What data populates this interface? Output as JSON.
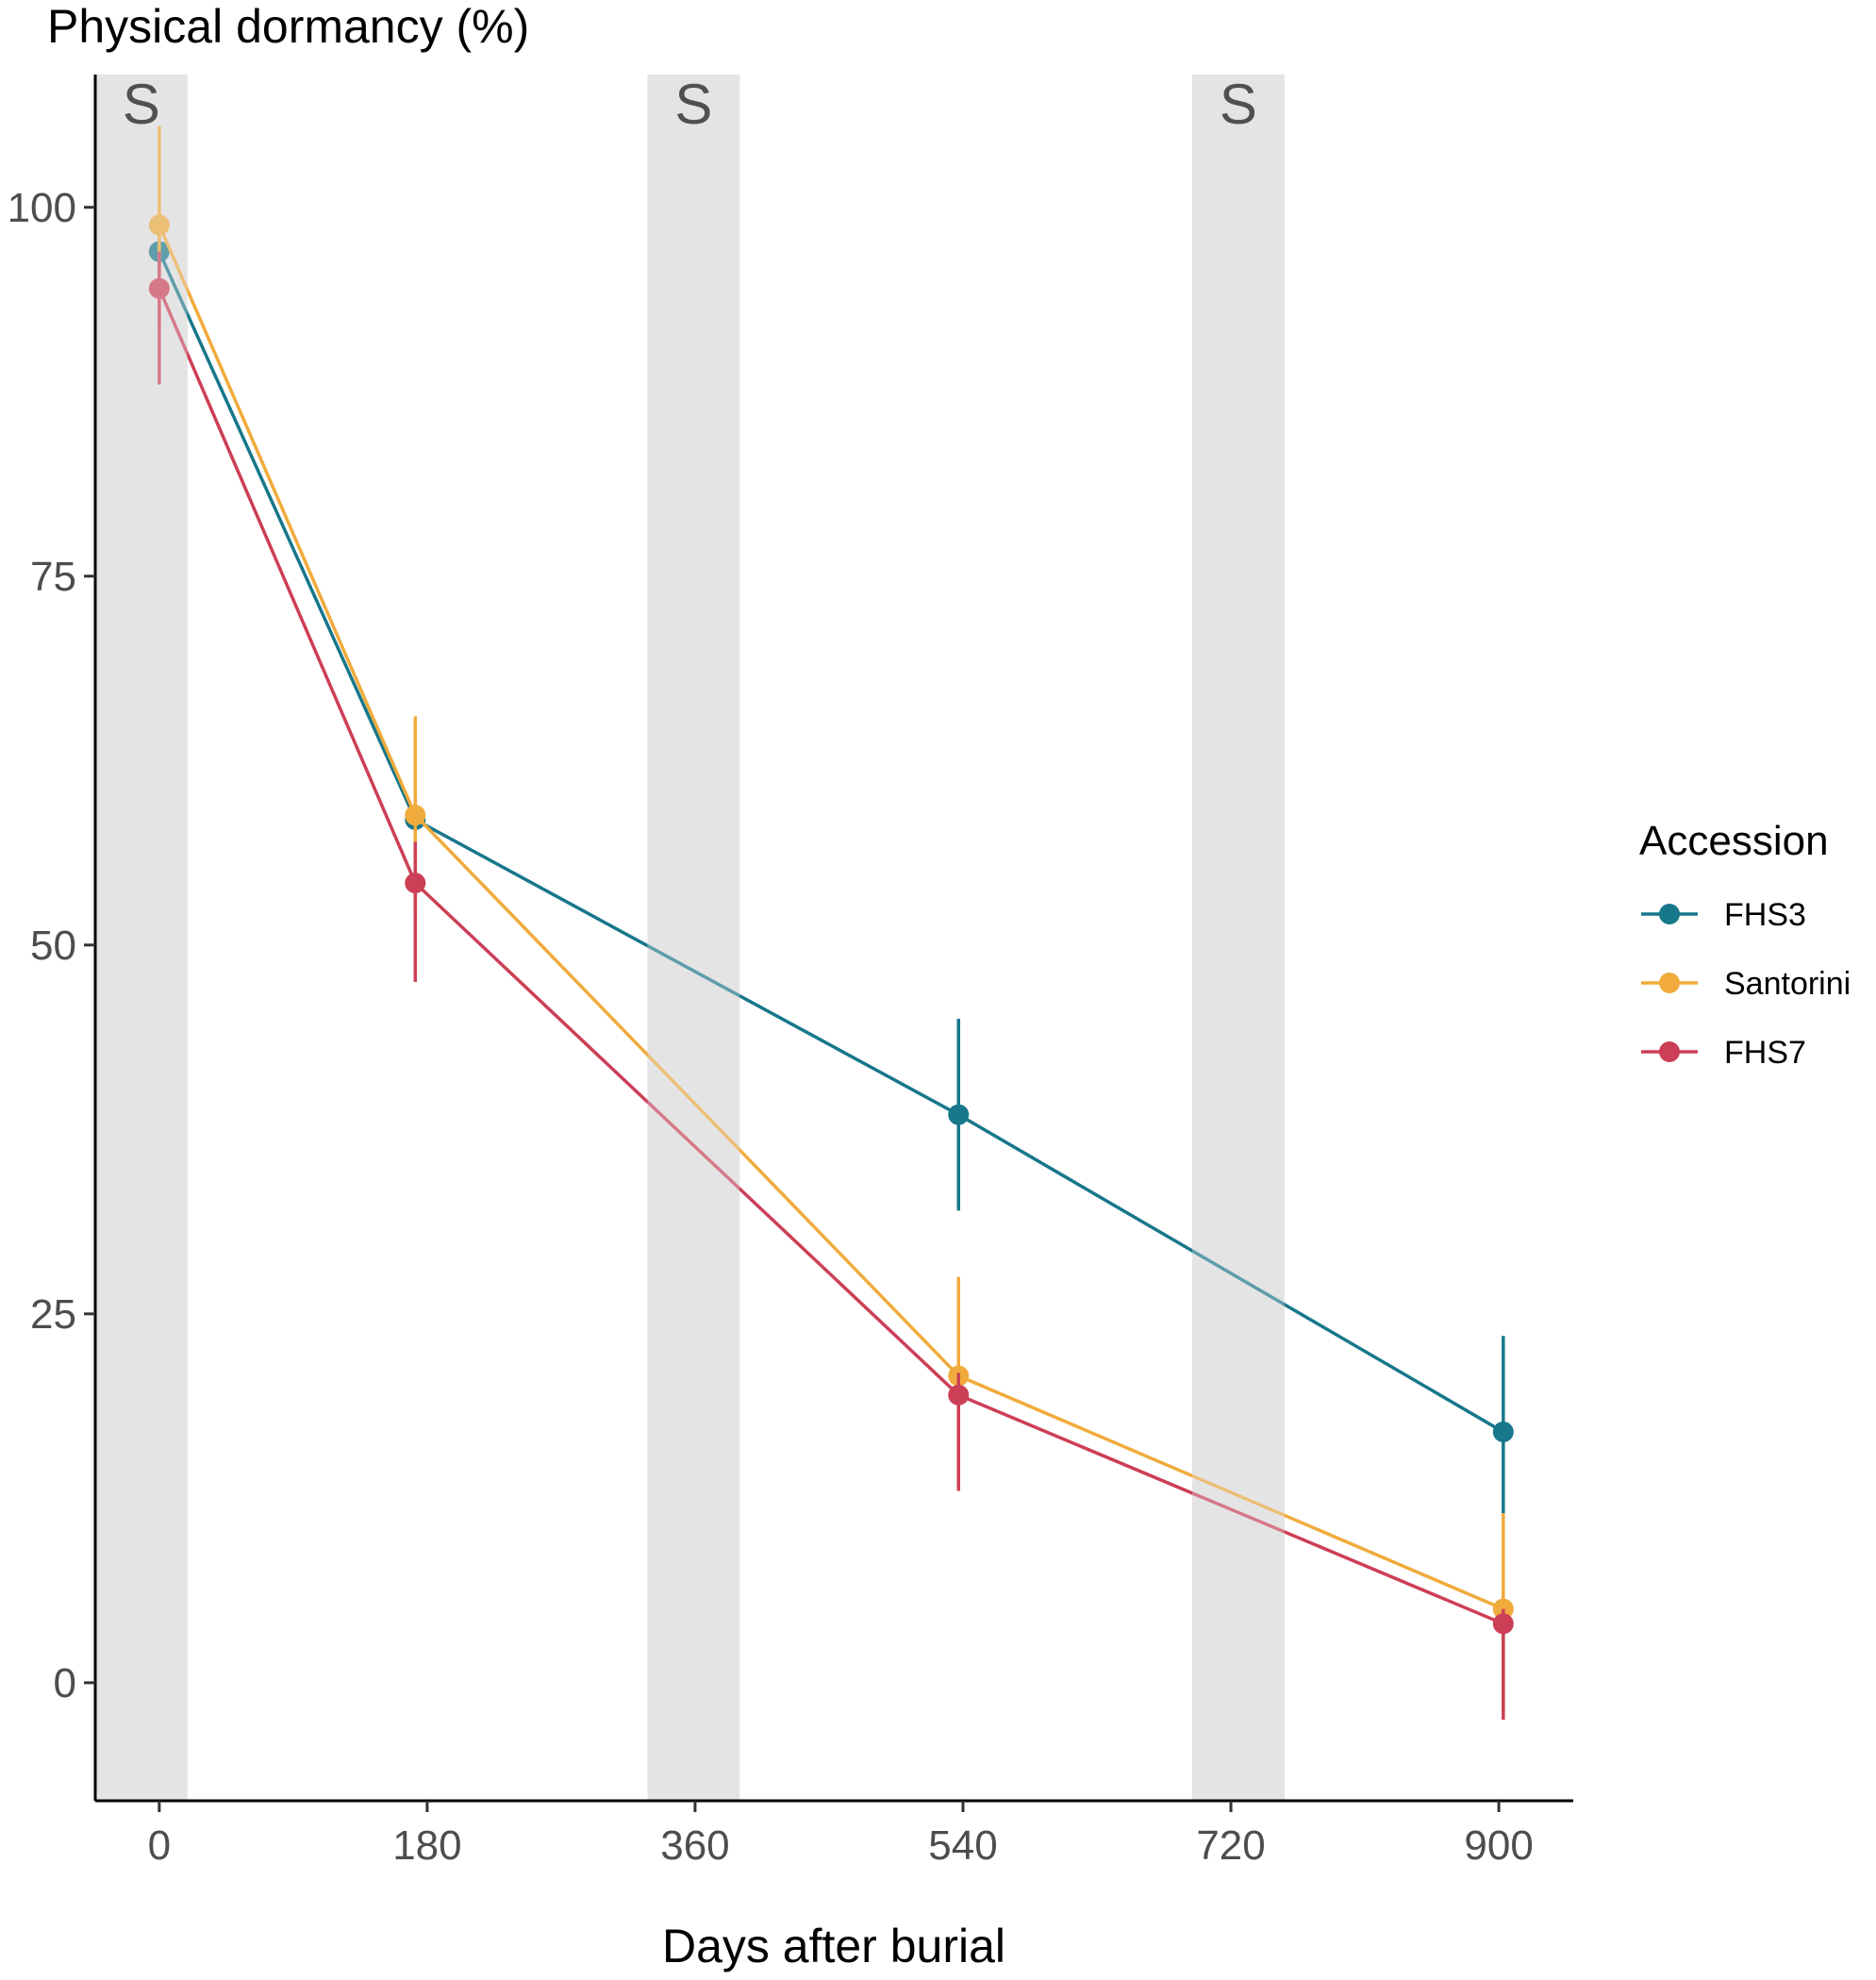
{
  "chart_data": {
    "type": "line",
    "ylabel": "Physical dormancy (%)",
    "xlabel": "Days after burial",
    "x_ticks": [
      0,
      180,
      360,
      540,
      720,
      900
    ],
    "y_ticks": [
      0,
      25,
      50,
      75,
      100
    ],
    "xlim": [
      -43,
      950
    ],
    "ylim": [
      -8,
      109
    ],
    "grid": false,
    "shaded_periods": [
      {
        "label": "S",
        "x": [
          -43,
          19
        ]
      },
      {
        "label": "S",
        "x": [
          328,
          390
        ]
      },
      {
        "label": "S",
        "x": [
          694,
          756
        ]
      }
    ],
    "legend": {
      "title": "Accession",
      "placement": "right"
    },
    "series": [
      {
        "name": "FHS3",
        "color": "#17778b",
        "x": [
          0,
          172,
          537,
          903
        ],
        "y": [
          97,
          58.5,
          38.5,
          17
        ],
        "err_low": [
          96,
          52,
          32,
          11.5
        ],
        "err_high": [
          98,
          60,
          45,
          23.5
        ]
      },
      {
        "name": "Santorini",
        "color": "#f0ab3c",
        "x": [
          0,
          172,
          537,
          903
        ],
        "y": [
          98.8,
          58.8,
          20.8,
          5
        ],
        "err_low": [
          92,
          52,
          14,
          -2
        ],
        "err_high": [
          105.5,
          65.5,
          27.5,
          11.5
        ]
      },
      {
        "name": "FHS7",
        "color": "#cc3f56",
        "x": [
          0,
          172,
          537,
          903
        ],
        "y": [
          94.5,
          54.2,
          19.5,
          4
        ],
        "err_low": [
          88,
          47.5,
          13,
          -2.5
        ],
        "err_high": [
          97,
          57,
          21,
          5
        ]
      }
    ]
  }
}
